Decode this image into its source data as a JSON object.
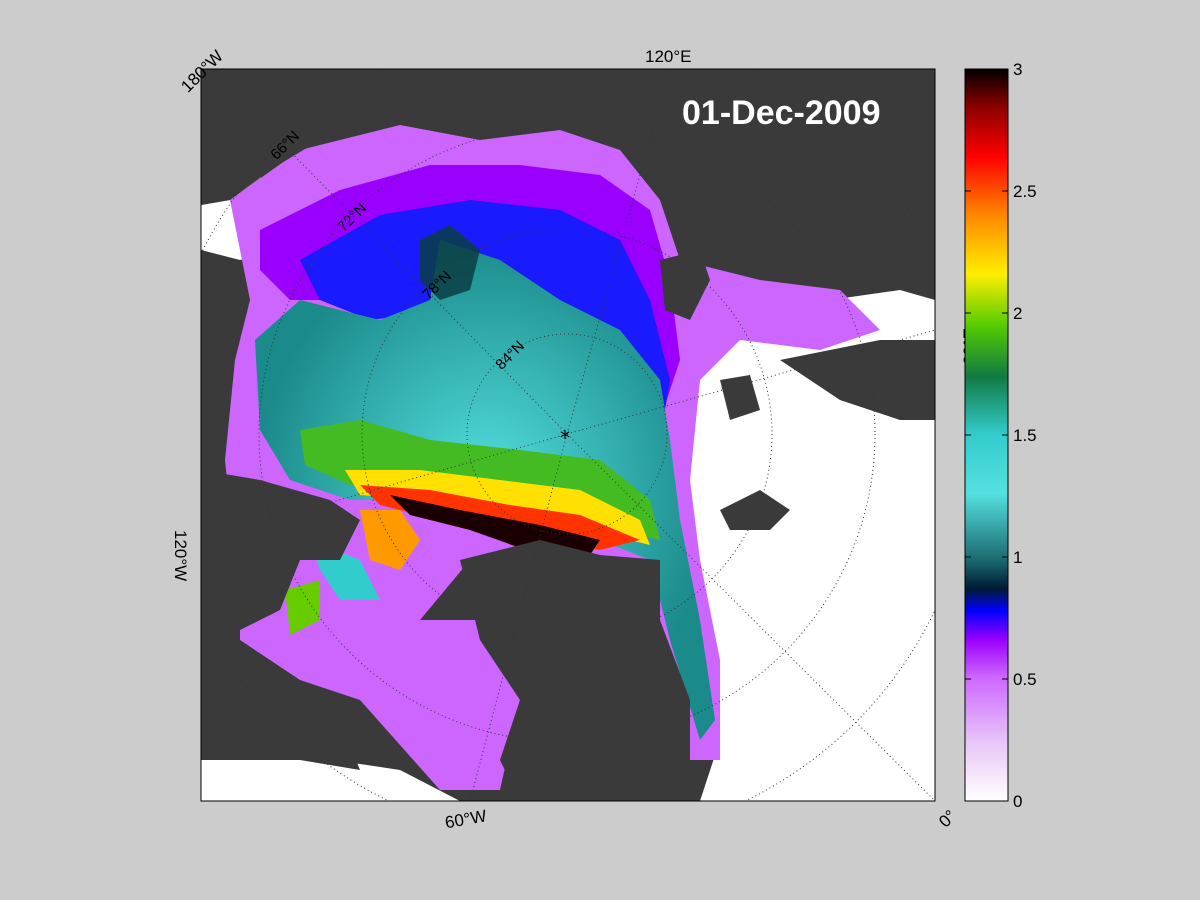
{
  "map": {
    "date": "01-Dec-2009",
    "pole_marker": "*",
    "lon_labels": {
      "top_left": "180°W",
      "top": "120°E",
      "right": "60°E",
      "left": "120°W",
      "bottom": "60°W",
      "bottom_right": "0°"
    },
    "lat_labels": [
      "66°N",
      "72°N",
      "78°N",
      "84°N"
    ]
  },
  "colorbar": {
    "ticks": [
      "3",
      "2.5",
      "2",
      "1.5",
      "1",
      "0.5",
      "0"
    ],
    "min": 0,
    "max": 3,
    "colors": [
      "#ffffff",
      "#cc66ff",
      "#9900ff",
      "#0000ff",
      "#003a40",
      "#33cccc",
      "#22aa55",
      "#55dd00",
      "#ffee00",
      "#ff8800",
      "#ff0000",
      "#990000",
      "#000000"
    ]
  },
  "colors": {
    "background": "#cccccc",
    "land": "#3a3a3a",
    "open_ocean": "#ffffff",
    "grid": "#333333"
  }
}
